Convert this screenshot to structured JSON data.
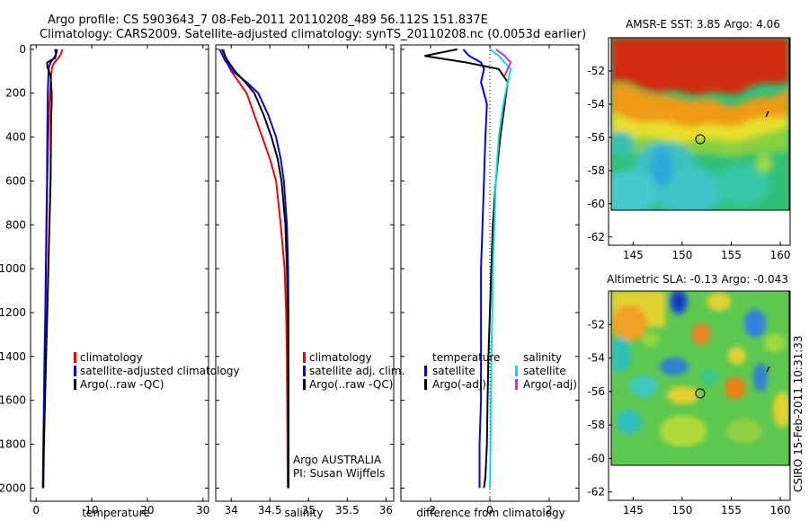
{
  "header": {
    "line1": "Argo profile: CS 5903643_7 08-Feb-2011 20110208_489 56.112S 151.837E",
    "line2": "Climatology: CARS2009. Satellite-adjusted climatology: synTS_20110208.nc (0.0053d earlier)"
  },
  "footer": {
    "argo_country": "Argo AUSTRALIA",
    "pi": "PI: Susan Wijffels",
    "stamp": "CSIRO 15-Feb-2011 10:31:33"
  },
  "colors": {
    "climatology": "#ff0000",
    "satellite": "#0000ff",
    "argo": "#000000",
    "salinity_satellite": "#00e0e0",
    "salinity_argo": "#e020e0"
  },
  "chart_data": [
    {
      "id": "temperature",
      "type": "line",
      "xlabel": "temperature",
      "xlim": [
        -1,
        31
      ],
      "ylim": [
        2060,
        0
      ],
      "xticks": [
        0,
        10,
        20,
        30
      ],
      "yticks": [
        0,
        200,
        400,
        600,
        800,
        1000,
        1200,
        1400,
        1600,
        1800,
        2000
      ],
      "series": [
        {
          "name": "climatology",
          "color": "#ff0000",
          "x": [
            4.7,
            4.5,
            4.0,
            3.3,
            2.9,
            2.7,
            2.5,
            2.3,
            2.2,
            2.0,
            1.9,
            1.8,
            1.7,
            1.55,
            1.45,
            1.35,
            1.25
          ],
          "y": [
            0,
            20,
            40,
            60,
            80,
            120,
            200,
            300,
            400,
            600,
            800,
            1000,
            1200,
            1400,
            1600,
            1800,
            2000
          ]
        },
        {
          "name": "satellite-adjusted climatology",
          "color": "#0000ff",
          "x": [
            3.8,
            3.6,
            3.2,
            2.6,
            2.3,
            2.2,
            2.1,
            2.05,
            2.0,
            1.95,
            1.85,
            1.75,
            1.65,
            1.5,
            1.4,
            1.3,
            1.2
          ],
          "y": [
            0,
            20,
            40,
            60,
            80,
            120,
            200,
            300,
            400,
            600,
            800,
            1000,
            1200,
            1400,
            1600,
            1800,
            2000
          ]
        },
        {
          "name": "Argo(..raw -QC)",
          "color": "#000000",
          "x": [
            3.4,
            3.6,
            3.4,
            2.0,
            2.0,
            2.6,
            2.8,
            2.8,
            2.7,
            2.6,
            2.4,
            2.2,
            2.0,
            1.8,
            1.6,
            1.4,
            1.3
          ],
          "y": [
            0,
            20,
            40,
            60,
            80,
            120,
            200,
            250,
            300,
            600,
            800,
            1000,
            1200,
            1400,
            1600,
            1800,
            2000
          ]
        }
      ],
      "legend": [
        "climatology",
        "satellite-adjusted climatology",
        "Argo(..raw -QC)"
      ]
    },
    {
      "id": "salinity",
      "type": "line",
      "xlabel": "salinity",
      "xlim": [
        33.8,
        36.1
      ],
      "ylim": [
        2060,
        0
      ],
      "xticks": [
        34,
        34.5,
        35,
        35.5,
        36
      ],
      "xticklabels": [
        "34",
        "34.5",
        "35",
        "35.5",
        "36"
      ],
      "series": [
        {
          "name": "climatology",
          "color": "#ff0000",
          "x": [
            33.9,
            33.93,
            34.0,
            34.1,
            34.2,
            34.3,
            34.4,
            34.5,
            34.58,
            34.64,
            34.69,
            34.71,
            34.72,
            34.725,
            34.73
          ],
          "y": [
            0,
            50,
            100,
            150,
            200,
            300,
            400,
            500,
            600,
            800,
            1000,
            1200,
            1400,
            1700,
            2000
          ]
        },
        {
          "name": "satellite adj. clim.",
          "color": "#0000ff",
          "x": [
            33.85,
            33.92,
            34.02,
            34.2,
            34.35,
            34.48,
            34.58,
            34.64,
            34.68,
            34.72,
            34.735,
            34.74,
            34.74,
            34.74,
            34.74
          ],
          "y": [
            0,
            50,
            100,
            150,
            200,
            300,
            400,
            500,
            600,
            800,
            1000,
            1200,
            1400,
            1700,
            2000
          ]
        },
        {
          "name": "Argo(..raw -QC)",
          "color": "#000000",
          "x": [
            33.88,
            33.95,
            34.05,
            34.18,
            34.3,
            34.42,
            34.52,
            34.6,
            34.65,
            34.7,
            34.72,
            34.73,
            34.735,
            34.74,
            34.74
          ],
          "y": [
            0,
            50,
            100,
            150,
            200,
            300,
            400,
            500,
            600,
            800,
            1000,
            1200,
            1400,
            1700,
            2000
          ]
        }
      ],
      "legend": [
        "climatology",
        "satellite adj. clim.",
        "Argo(..raw -QC)"
      ]
    },
    {
      "id": "difference",
      "type": "line",
      "xlabel": "difference from climatology",
      "xlim": [
        -3.0,
        3.0
      ],
      "ylim": [
        2060,
        0
      ],
      "xticks": [
        -2,
        0,
        2
      ],
      "series": [
        {
          "name": "temperature satellite",
          "color": "#0000ff",
          "x": [
            -0.9,
            -0.7,
            -0.3,
            -0.2,
            -0.3,
            -0.1,
            -0.15,
            -0.2,
            -0.25,
            -0.3,
            -0.3,
            -0.3,
            -0.3,
            -0.35,
            -0.35,
            -0.35
          ],
          "y": [
            0,
            30,
            60,
            90,
            150,
            250,
            400,
            600,
            800,
            1000,
            1200,
            1400,
            1600,
            1800,
            1950,
            2000
          ]
        },
        {
          "name": "temperature Argo(-adj)",
          "color": "#000000",
          "x": [
            -1.1,
            -2.2,
            -0.8,
            0.3,
            0.6,
            0.5,
            0.35,
            0.2,
            0.1,
            0.05,
            0.0,
            -0.05,
            -0.08,
            -0.1,
            -0.15,
            -0.2
          ],
          "y": [
            0,
            30,
            60,
            90,
            150,
            250,
            400,
            600,
            800,
            1000,
            1200,
            1400,
            1600,
            1800,
            1950,
            2000
          ]
        },
        {
          "name": "salinity satellite",
          "color": "#00e0e0",
          "x": [
            0.0,
            0.3,
            0.5,
            0.7,
            0.6,
            0.45,
            0.3,
            0.2,
            0.15,
            0.1,
            0.08,
            0.05,
            0.03,
            0.02,
            0.01,
            0.0
          ],
          "y": [
            0,
            30,
            60,
            90,
            150,
            250,
            400,
            600,
            800,
            1000,
            1200,
            1400,
            1600,
            1800,
            1950,
            2000
          ]
        },
        {
          "name": "salinity Argo(-adj)",
          "color": "#e020e0",
          "x": [
            0.2,
            0.5,
            0.7,
            0.6,
            0.5
          ],
          "y": [
            0,
            30,
            60,
            90,
            120
          ]
        }
      ],
      "legend_left_header": "temperature",
      "legend_right_header": "salinity",
      "legend_left": [
        "satellite",
        "Argo(-adj)"
      ],
      "legend_right": [
        "satellite",
        "Argo(-adj)"
      ]
    },
    {
      "id": "sst_map",
      "type": "heatmap",
      "title": "AMSR-E SST: 3.85 Argo: 4.06",
      "xlim": [
        142.5,
        161
      ],
      "ylim": [
        -62.5,
        -50
      ],
      "xticks": [
        145,
        150,
        155,
        160
      ],
      "yticks": [
        -52,
        -54,
        -56,
        -58,
        -60,
        -62
      ],
      "float_position": {
        "lon": 151.837,
        "lat": -56.112
      }
    },
    {
      "id": "sla_map",
      "type": "heatmap",
      "title": "Altimetric SLA: -0.13 Argo: -0.043",
      "xlim": [
        142.5,
        161
      ],
      "ylim": [
        -62.5,
        -50
      ],
      "xticks": [
        145,
        150,
        155,
        160
      ],
      "yticks": [
        -52,
        -54,
        -56,
        -58,
        -60,
        -62
      ],
      "float_position": {
        "lon": 151.837,
        "lat": -56.112
      }
    }
  ]
}
